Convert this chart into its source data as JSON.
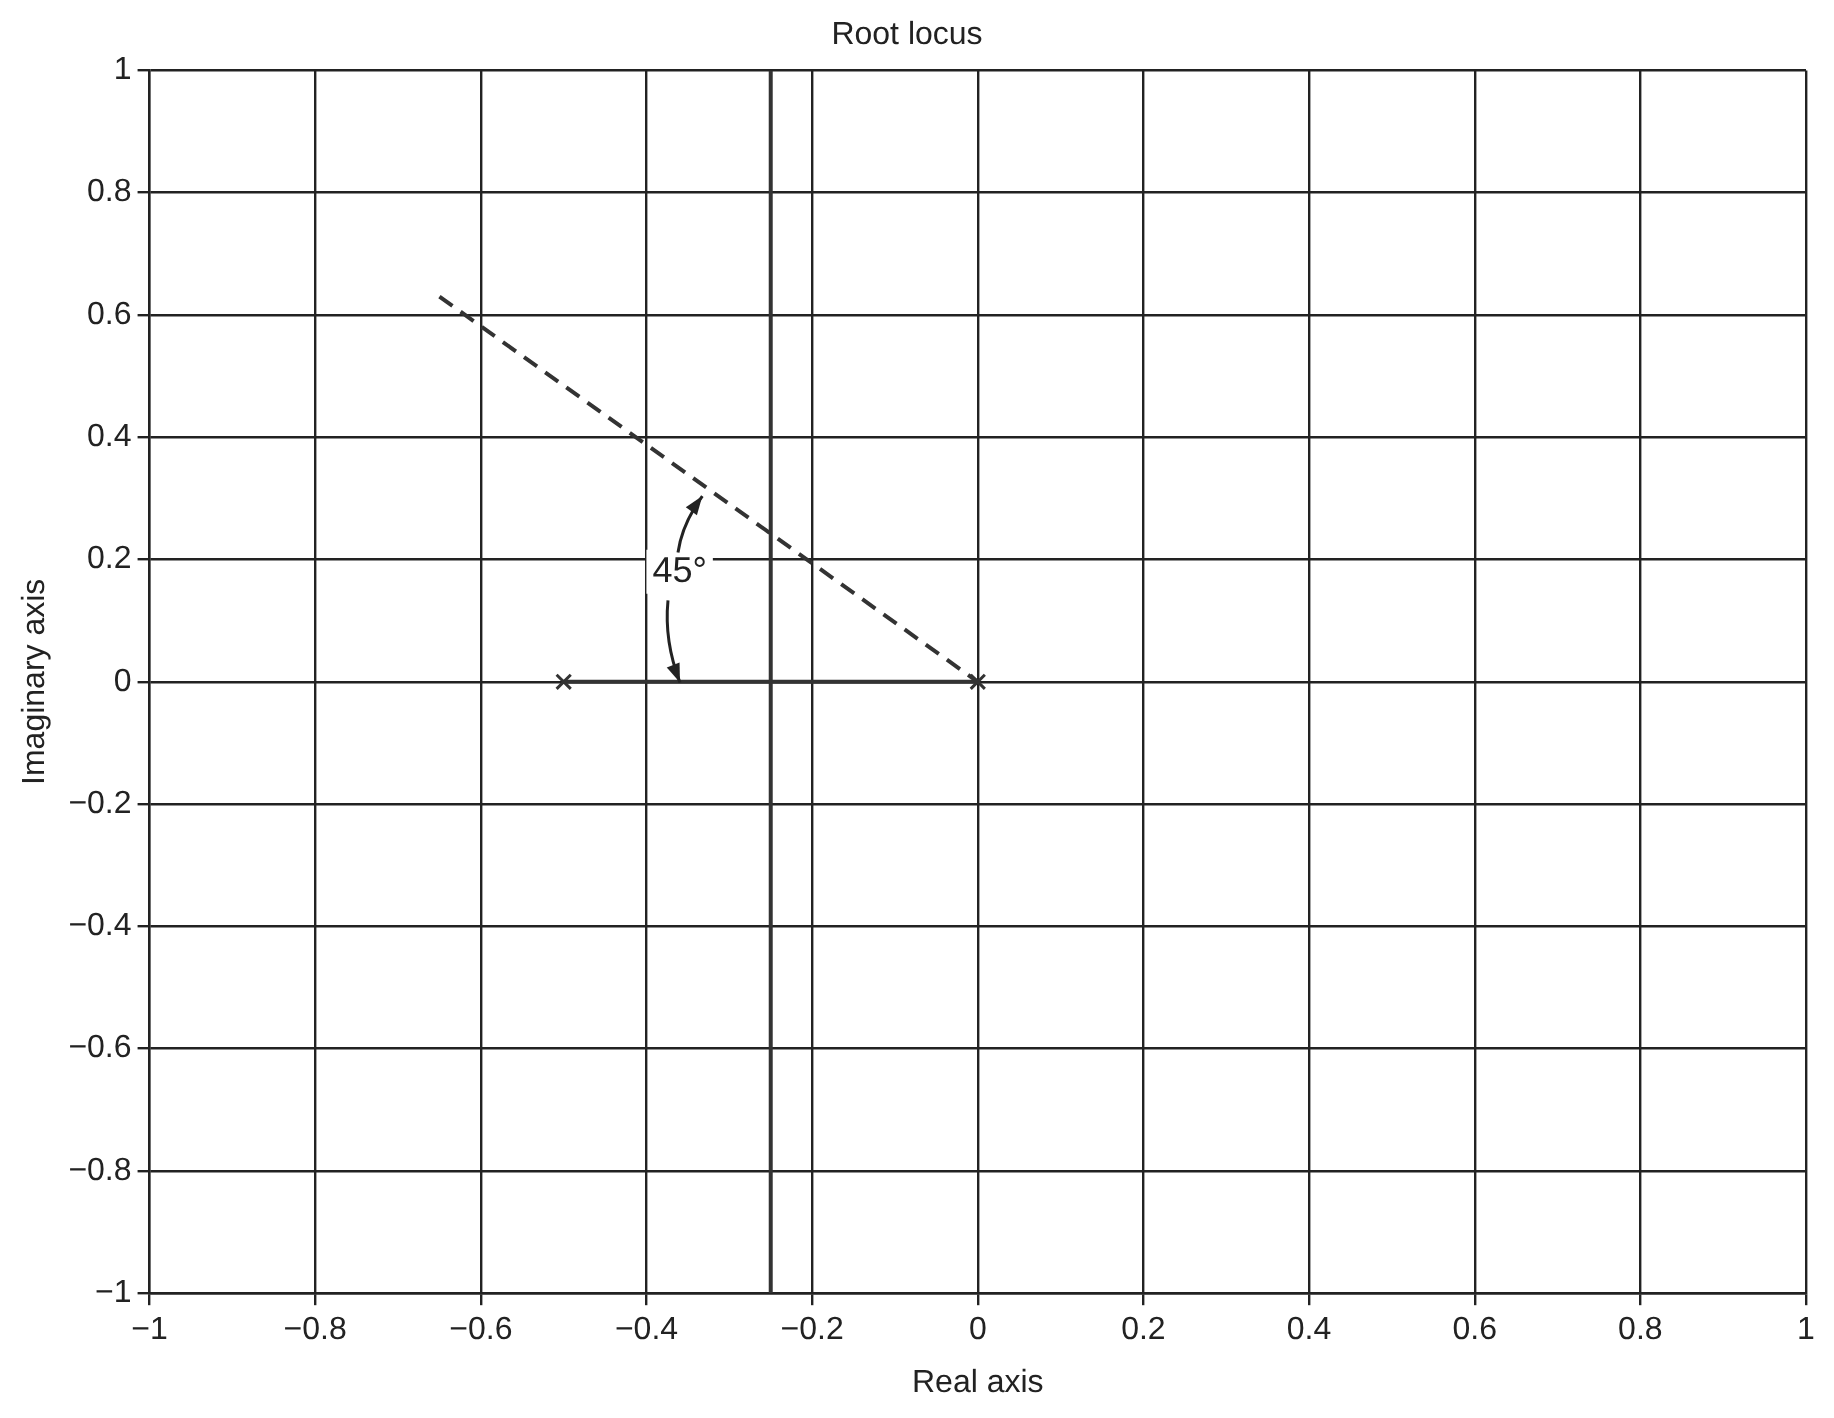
{
  "chart_data": {
    "type": "line",
    "title": "Root locus",
    "xlabel": "Real axis",
    "ylabel": "Imaginary axis",
    "xlim": [
      -1,
      1
    ],
    "xticks": [
      -1,
      -0.8,
      -0.6,
      -0.4,
      -0.2,
      0,
      0.2,
      0.4,
      0.6,
      0.8,
      1
    ],
    "ylim": [
      -1,
      1
    ],
    "yticks": [
      -1,
      -0.8,
      -0.6,
      -0.4,
      -0.2,
      0,
      0.2,
      0.4,
      0.6,
      0.8,
      1
    ],
    "grid": true,
    "legend": false,
    "series": [
      {
        "color": "#333333",
        "x": [
          -0.5,
          0
        ],
        "values": [
          0,
          0
        ],
        "marker": "none",
        "line_style": "solid"
      },
      {
        "color": "#333333",
        "x": [
          -0.25,
          -0.25
        ],
        "values": [
          -1,
          1
        ],
        "marker": "none",
        "line_style": "solid"
      },
      {
        "color": "#333333",
        "x": [
          -0.65,
          0
        ],
        "values": [
          0.63,
          0
        ],
        "marker": "none",
        "line_style": "dashed"
      },
      {
        "type": "scatter",
        "color": "#333333",
        "x": [
          -0.5,
          0
        ],
        "values": [
          0,
          0
        ],
        "marker": "cross"
      }
    ],
    "annotations": [
      {
        "text": "45°",
        "x": -0.36,
        "y": 0.18
      }
    ]
  }
}
